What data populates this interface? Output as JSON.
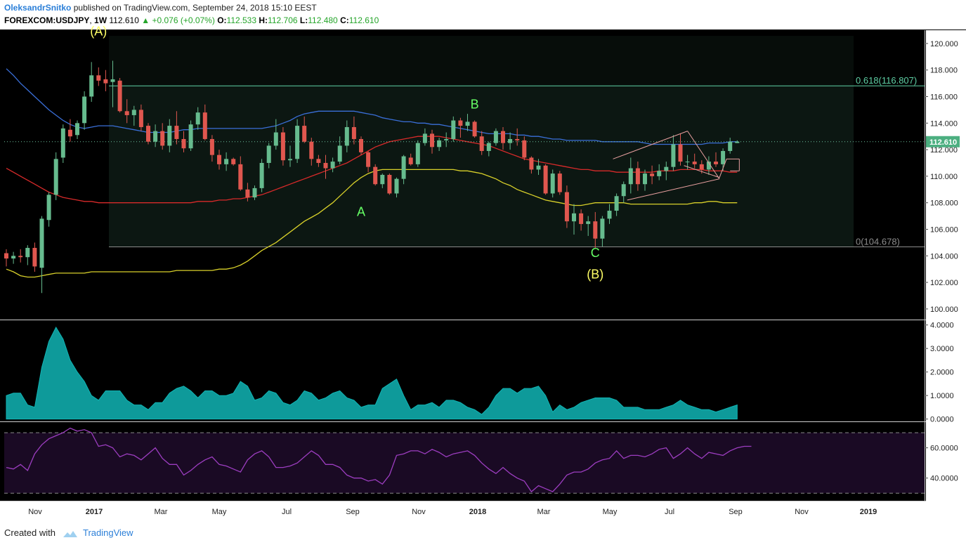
{
  "header": {
    "author": "OleksandrSnitko",
    "published_text": "published on TradingView.com, September 24, 2018 15:10 EEST"
  },
  "symbol_bar": {
    "symbol": "FOREXCOM:USDJPY",
    "interval": "1W",
    "last": "112.610",
    "change": "+0.076 (+0.07%)",
    "open_label": "O:",
    "open": "112.533",
    "high_label": "H:",
    "high": "112.706",
    "low_label": "L:",
    "low": "112.480",
    "close_label": "C:",
    "close": "112.610"
  },
  "footer": {
    "created_with": "Created with",
    "brand": "TradingView"
  },
  "colors": {
    "up": "#66bb8e",
    "down": "#e0574f",
    "ma_blue": "#3a6fd8",
    "ma_red": "#d82a2a",
    "ma_yellow": "#d8d02a",
    "fib": "#5fd0a5",
    "atr": "#11b5b5",
    "rsi": "#9c3dc0",
    "rsi_bg": "#1a0a24",
    "wave_yellow": "#ffff66",
    "wave_green": "#66ff66"
  },
  "chart_data": [
    {
      "type": "candlestick",
      "title": "USDJPY weekly",
      "y_axis_ticks": [
        "120.000",
        "118.000",
        "116.000",
        "114.000",
        "112.000",
        "110.000",
        "108.000",
        "106.000",
        "104.000",
        "102.000",
        "100.000"
      ],
      "ylim": [
        99.2,
        121.0
      ],
      "x_axis_ticks": [
        "Nov",
        "2017",
        "Mar",
        "May",
        "Jul",
        "Sep",
        "Nov",
        "2018",
        "Mar",
        "May",
        "Jul",
        "Sep",
        "Nov",
        "2019"
      ],
      "current_price_label": "112.610",
      "fib_levels": [
        {
          "label": "0.618(116.807)",
          "value": 116.807
        },
        {
          "label": "0(104.678)",
          "value": 104.678
        }
      ],
      "wave_labels": [
        {
          "text": "(A)",
          "week": 13,
          "price": 120.6,
          "color": "yellow"
        },
        {
          "text": "B",
          "week": 66,
          "price": 115.1,
          "color": "green"
        },
        {
          "text": "A",
          "week": 50,
          "price": 107.0,
          "color": "green"
        },
        {
          "text": "C",
          "week": 83,
          "price": 103.9,
          "color": "green"
        },
        {
          "text": "(B)",
          "week": 83,
          "price": 102.3,
          "color": "yellow"
        }
      ],
      "ohlc": [
        [
          104.2,
          104.5,
          103.2,
          103.8
        ],
        [
          103.8,
          104.3,
          103.4,
          104.0
        ],
        [
          104.0,
          104.5,
          103.5,
          103.9
        ],
        [
          103.9,
          104.8,
          103.3,
          104.6
        ],
        [
          104.6,
          105.0,
          102.8,
          103.2
        ],
        [
          103.1,
          107.0,
          101.2,
          106.8
        ],
        [
          106.7,
          108.8,
          106.2,
          108.6
        ],
        [
          108.6,
          111.8,
          108.2,
          111.3
        ],
        [
          111.4,
          113.9,
          111.0,
          113.6
        ],
        [
          113.5,
          114.3,
          112.6,
          113.0
        ],
        [
          113.1,
          114.2,
          112.8,
          114.0
        ],
        [
          114.0,
          116.4,
          113.5,
          116.0
        ],
        [
          116.0,
          118.6,
          115.6,
          117.6
        ],
        [
          117.6,
          118.2,
          116.8,
          117.2
        ],
        [
          117.3,
          118.0,
          116.4,
          117.0
        ],
        [
          117.1,
          118.7,
          115.2,
          117.3
        ],
        [
          117.2,
          117.4,
          114.8,
          114.9
        ],
        [
          114.9,
          115.8,
          114.0,
          114.6
        ],
        [
          114.6,
          115.3,
          113.8,
          115.0
        ],
        [
          115.0,
          115.4,
          113.4,
          113.7
        ],
        [
          113.8,
          114.0,
          112.4,
          112.6
        ],
        [
          112.6,
          113.9,
          112.2,
          113.4
        ],
        [
          113.4,
          114.0,
          112.0,
          112.3
        ],
        [
          112.3,
          114.3,
          111.8,
          113.8
        ],
        [
          113.8,
          114.9,
          112.4,
          112.8
        ],
        [
          112.8,
          113.4,
          111.8,
          112.1
        ],
        [
          112.1,
          114.2,
          111.9,
          113.9
        ],
        [
          113.9,
          115.2,
          113.5,
          114.8
        ],
        [
          114.8,
          115.4,
          112.7,
          112.8
        ],
        [
          112.8,
          113.1,
          111.1,
          111.6
        ],
        [
          111.6,
          112.0,
          110.5,
          110.9
        ],
        [
          110.9,
          111.8,
          110.4,
          111.3
        ],
        [
          111.3,
          111.4,
          110.8,
          110.9
        ],
        [
          110.9,
          111.5,
          108.9,
          109.0
        ],
        [
          109.0,
          109.5,
          108.1,
          108.4
        ],
        [
          108.4,
          109.3,
          108.2,
          109.1
        ],
        [
          109.1,
          111.3,
          108.8,
          111.0
        ],
        [
          111.0,
          112.5,
          110.6,
          112.3
        ],
        [
          112.3,
          114.3,
          112.0,
          113.3
        ],
        [
          113.3,
          113.7,
          110.8,
          111.2
        ],
        [
          111.2,
          112.3,
          110.7,
          111.3
        ],
        [
          111.3,
          114.3,
          111.0,
          113.8
        ],
        [
          113.8,
          114.5,
          112.5,
          112.6
        ],
        [
          112.6,
          112.9,
          110.8,
          111.3
        ],
        [
          111.3,
          111.6,
          110.7,
          111.0
        ],
        [
          111.0,
          111.6,
          109.8,
          110.6
        ],
        [
          110.6,
          111.4,
          110.3,
          111.1
        ],
        [
          111.1,
          113.0,
          110.9,
          112.3
        ],
        [
          112.3,
          114.2,
          111.8,
          113.7
        ],
        [
          113.7,
          114.5,
          112.4,
          112.8
        ],
        [
          112.8,
          113.0,
          111.6,
          111.8
        ],
        [
          111.8,
          111.9,
          110.3,
          110.7
        ],
        [
          110.7,
          110.9,
          109.3,
          109.4
        ],
        [
          109.4,
          110.2,
          109.1,
          110.1
        ],
        [
          110.1,
          110.2,
          108.6,
          108.7
        ],
        [
          108.7,
          109.9,
          108.4,
          109.8
        ],
        [
          109.8,
          111.6,
          109.4,
          111.5
        ],
        [
          111.4,
          111.7,
          110.8,
          110.9
        ],
        [
          110.9,
          112.7,
          110.7,
          112.5
        ],
        [
          112.5,
          113.6,
          112.3,
          113.2
        ],
        [
          113.2,
          113.5,
          111.7,
          112.2
        ],
        [
          112.2,
          112.9,
          111.9,
          112.7
        ],
        [
          112.7,
          113.3,
          112.2,
          112.8
        ],
        [
          112.8,
          114.5,
          112.6,
          114.2
        ],
        [
          114.2,
          114.4,
          112.9,
          113.8
        ],
        [
          113.8,
          114.7,
          113.4,
          114.1
        ],
        [
          114.1,
          114.2,
          112.9,
          113.0
        ],
        [
          113.0,
          113.4,
          111.6,
          111.9
        ],
        [
          111.9,
          112.6,
          111.5,
          112.5
        ],
        [
          112.5,
          113.6,
          112.3,
          113.4
        ],
        [
          113.4,
          113.7,
          112.0,
          112.5
        ],
        [
          112.5,
          113.3,
          112.0,
          112.8
        ],
        [
          112.8,
          113.6,
          112.3,
          112.7
        ],
        [
          112.7,
          113.0,
          111.2,
          111.4
        ],
        [
          111.4,
          111.5,
          110.2,
          110.5
        ],
        [
          110.5,
          111.3,
          110.1,
          110.8
        ],
        [
          110.8,
          110.9,
          108.6,
          108.7
        ],
        [
          108.7,
          110.5,
          108.4,
          110.2
        ],
        [
          110.2,
          110.4,
          108.6,
          108.8
        ],
        [
          108.8,
          109.3,
          106.1,
          106.6
        ],
        [
          106.6,
          107.9,
          105.6,
          107.2
        ],
        [
          107.2,
          107.5,
          105.9,
          106.4
        ],
        [
          106.4,
          107.0,
          105.5,
          106.6
        ],
        [
          106.6,
          107.3,
          104.6,
          105.3
        ],
        [
          105.3,
          107.0,
          104.7,
          106.8
        ],
        [
          106.8,
          107.9,
          106.4,
          107.4
        ],
        [
          107.4,
          108.7,
          107.0,
          108.5
        ],
        [
          108.5,
          109.6,
          108.0,
          109.4
        ],
        [
          109.4,
          111.4,
          108.7,
          110.6
        ],
        [
          110.6,
          111.1,
          108.9,
          109.4
        ],
        [
          109.4,
          110.5,
          108.9,
          110.2
        ],
        [
          110.2,
          110.8,
          109.4,
          110.0
        ],
        [
          110.0,
          110.9,
          109.7,
          110.4
        ],
        [
          110.4,
          111.1,
          109.7,
          110.7
        ],
        [
          110.7,
          113.1,
          110.4,
          112.4
        ],
        [
          112.4,
          113.2,
          110.8,
          111.1
        ],
        [
          111.1,
          111.6,
          110.5,
          111.1
        ],
        [
          111.1,
          111.7,
          110.6,
          110.9
        ],
        [
          110.9,
          111.2,
          110.2,
          110.5
        ],
        [
          110.5,
          111.5,
          110.1,
          111.1
        ],
        [
          111.1,
          111.8,
          110.7,
          110.9
        ],
        [
          110.9,
          112.1,
          110.4,
          111.9
        ],
        [
          111.9,
          112.9,
          111.7,
          112.6
        ],
        [
          112.5,
          112.7,
          112.5,
          112.6
        ]
      ],
      "ma_blue": [
        118.1,
        117.6,
        117.0,
        116.5,
        116.0,
        115.5,
        115.0,
        114.6,
        114.2,
        113.9,
        113.7,
        113.6,
        113.7,
        113.8,
        113.8,
        113.8,
        113.7,
        113.6,
        113.5,
        113.4,
        113.3,
        113.3,
        113.3,
        113.3,
        113.4,
        113.5,
        113.5,
        113.6,
        113.6,
        113.6,
        113.6,
        113.6,
        113.6,
        113.6,
        113.6,
        113.6,
        113.6,
        113.7,
        113.8,
        114.0,
        114.2,
        114.5,
        114.7,
        114.8,
        114.9,
        114.9,
        114.9,
        114.9,
        114.9,
        114.9,
        114.8,
        114.7,
        114.6,
        114.4,
        114.3,
        114.2,
        114.1,
        114.1,
        114.0,
        114.0,
        113.9,
        113.9,
        113.8,
        113.7,
        113.6,
        113.5,
        113.4,
        113.3,
        113.2,
        113.2,
        113.2,
        113.2,
        113.1,
        113.1,
        113.0,
        113.0,
        112.9,
        112.8,
        112.8,
        112.7,
        112.7,
        112.7,
        112.7,
        112.7,
        112.6,
        112.6,
        112.6,
        112.6,
        112.6,
        112.6,
        112.5,
        112.4,
        112.4,
        112.4,
        112.4,
        112.4,
        112.4,
        112.4,
        112.4,
        112.5,
        112.5,
        112.5,
        112.6,
        112.6
      ],
      "ma_red": [
        110.6,
        110.3,
        110.0,
        109.7,
        109.4,
        109.1,
        108.8,
        108.6,
        108.4,
        108.3,
        108.2,
        108.1,
        108.1,
        108.0,
        108.0,
        108.0,
        108.0,
        108.0,
        108.0,
        108.0,
        108.0,
        108.0,
        108.0,
        108.0,
        108.0,
        108.0,
        108.0,
        108.1,
        108.1,
        108.1,
        108.2,
        108.2,
        108.3,
        108.3,
        108.4,
        108.5,
        108.6,
        108.8,
        109.0,
        109.2,
        109.4,
        109.6,
        109.8,
        110.0,
        110.2,
        110.4,
        110.6,
        110.8,
        111.0,
        111.3,
        111.6,
        111.9,
        112.2,
        112.4,
        112.6,
        112.7,
        112.8,
        112.9,
        113.0,
        113.0,
        113.0,
        113.0,
        112.9,
        112.8,
        112.7,
        112.6,
        112.5,
        112.4,
        112.3,
        112.1,
        111.9,
        111.7,
        111.5,
        111.3,
        111.2,
        111.1,
        111.0,
        110.9,
        110.8,
        110.7,
        110.6,
        110.5,
        110.5,
        110.4,
        110.4,
        110.4,
        110.3,
        110.3,
        110.3,
        110.3,
        110.3,
        110.3,
        110.4,
        110.4,
        110.4,
        110.5,
        110.5,
        110.5,
        110.5,
        110.4,
        110.4,
        110.4,
        110.3,
        110.3
      ],
      "ma_yellow": [
        103.0,
        102.8,
        102.5,
        102.4,
        102.4,
        102.5,
        102.6,
        102.7,
        102.7,
        102.7,
        102.7,
        102.7,
        102.8,
        102.8,
        102.8,
        102.8,
        102.8,
        102.8,
        102.8,
        102.8,
        102.8,
        102.8,
        102.8,
        102.8,
        102.9,
        102.9,
        102.9,
        102.9,
        102.9,
        102.9,
        103.0,
        103.0,
        103.1,
        103.3,
        103.6,
        104.0,
        104.4,
        104.7,
        105.0,
        105.4,
        105.8,
        106.2,
        106.6,
        106.9,
        107.2,
        107.6,
        108.0,
        108.5,
        109.0,
        109.5,
        109.9,
        110.2,
        110.4,
        110.5,
        110.5,
        110.5,
        110.5,
        110.5,
        110.5,
        110.5,
        110.5,
        110.5,
        110.5,
        110.5,
        110.4,
        110.4,
        110.3,
        110.2,
        110.0,
        109.8,
        109.5,
        109.3,
        109.0,
        108.8,
        108.6,
        108.4,
        108.2,
        108.1,
        108.0,
        107.9,
        107.8,
        107.8,
        107.9,
        108.0,
        108.0,
        108.0,
        108.0,
        108.0,
        107.9,
        107.9,
        107.9,
        107.9,
        107.9,
        107.9,
        107.9,
        107.9,
        107.9,
        108.0,
        108.0,
        108.1,
        108.1,
        108.0,
        108.0,
        108.0
      ]
    },
    {
      "type": "area",
      "title": "ATR",
      "y_axis_ticks": [
        "4.0000",
        "3.0000",
        "2.0000",
        "1.0000",
        "0.0000"
      ],
      "ylim": [
        -0.1,
        4.2
      ],
      "values": [
        1.0,
        1.1,
        1.1,
        0.6,
        0.5,
        2.2,
        3.3,
        3.9,
        3.4,
        2.5,
        2.0,
        1.6,
        1.0,
        0.8,
        1.2,
        1.2,
        1.2,
        0.8,
        0.6,
        0.6,
        0.4,
        0.7,
        0.7,
        1.1,
        1.3,
        1.4,
        1.2,
        0.9,
        1.2,
        1.2,
        1.0,
        1.0,
        1.1,
        1.6,
        1.4,
        0.8,
        0.9,
        1.2,
        1.1,
        0.7,
        0.6,
        0.8,
        1.2,
        1.1,
        0.8,
        0.9,
        1.1,
        1.2,
        0.9,
        0.8,
        0.5,
        0.6,
        0.6,
        1.3,
        1.5,
        1.7,
        1.0,
        0.4,
        0.6,
        0.6,
        0.7,
        0.5,
        0.8,
        0.8,
        0.7,
        0.5,
        0.4,
        0.2,
        0.5,
        1.0,
        1.3,
        1.3,
        1.1,
        1.3,
        1.3,
        1.4,
        1.0,
        0.3,
        0.6,
        0.4,
        0.5,
        0.7,
        0.8,
        0.9,
        0.9,
        0.9,
        0.8,
        0.5,
        0.5,
        0.5,
        0.4,
        0.4,
        0.4,
        0.5,
        0.6,
        0.8,
        0.6,
        0.5,
        0.4,
        0.4,
        0.3,
        0.4,
        0.5,
        0.6
      ]
    },
    {
      "type": "line",
      "title": "RSI",
      "y_axis_ticks": [
        "60.0000",
        "40.0000"
      ],
      "ylim": [
        25,
        77
      ],
      "values": [
        47,
        46,
        49,
        45,
        56,
        62,
        66,
        68,
        70,
        73,
        71,
        72,
        70,
        61,
        62,
        60,
        54,
        56,
        55,
        52,
        56,
        60,
        53,
        49,
        49,
        42,
        45,
        49,
        52,
        54,
        49,
        48,
        46,
        44,
        52,
        56,
        58,
        54,
        47,
        47,
        48,
        50,
        54,
        58,
        55,
        49,
        49,
        47,
        42,
        40,
        40,
        38,
        39,
        36,
        42,
        55,
        56,
        58,
        58,
        56,
        59,
        57,
        54,
        56,
        57,
        58,
        55,
        50,
        46,
        43,
        47,
        43,
        40,
        38,
        31,
        35,
        33,
        31,
        36,
        42,
        44,
        44,
        46,
        50,
        52,
        53,
        58,
        53,
        55,
        55,
        54,
        56,
        59,
        60,
        53,
        56,
        60,
        56,
        53,
        57,
        56,
        55,
        58,
        60,
        61,
        61
      ]
    }
  ]
}
